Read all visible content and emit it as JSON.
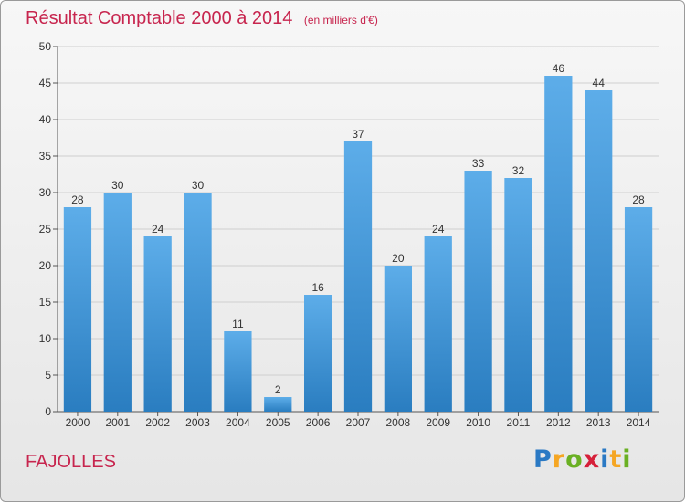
{
  "title": "Résultat Comptable 2000 à 2014",
  "subtitle": "(en milliers d'€)",
  "commune": "FAJOLLES",
  "brand": {
    "letters": [
      "P",
      "r",
      "o",
      "x",
      "i",
      "t",
      "i"
    ],
    "colors": [
      "#2a79c4",
      "#f5a623",
      "#6ab023",
      "#d6203a",
      "#2a79c4",
      "#f5a623",
      "#6ab023"
    ]
  },
  "colors": {
    "title": "#c7254e",
    "bar_light": "#5dade9",
    "bar_dark": "#2a7dc0"
  },
  "chart_data": {
    "type": "bar",
    "title": "Résultat Comptable 2000 à 2014",
    "subtitle": "(en milliers d'€)",
    "xlabel": "",
    "ylabel": "",
    "categories": [
      "2000",
      "2001",
      "2002",
      "2003",
      "2004",
      "2005",
      "2006",
      "2007",
      "2008",
      "2009",
      "2010",
      "2011",
      "2012",
      "2013",
      "2014"
    ],
    "values": [
      28,
      30,
      24,
      30,
      11,
      2,
      16,
      37,
      20,
      24,
      33,
      32,
      46,
      44,
      28
    ],
    "ylim": [
      0,
      50
    ],
    "yticks": [
      0,
      5,
      10,
      15,
      20,
      25,
      30,
      35,
      40,
      45,
      50
    ],
    "grid": true,
    "data_labels": true
  }
}
